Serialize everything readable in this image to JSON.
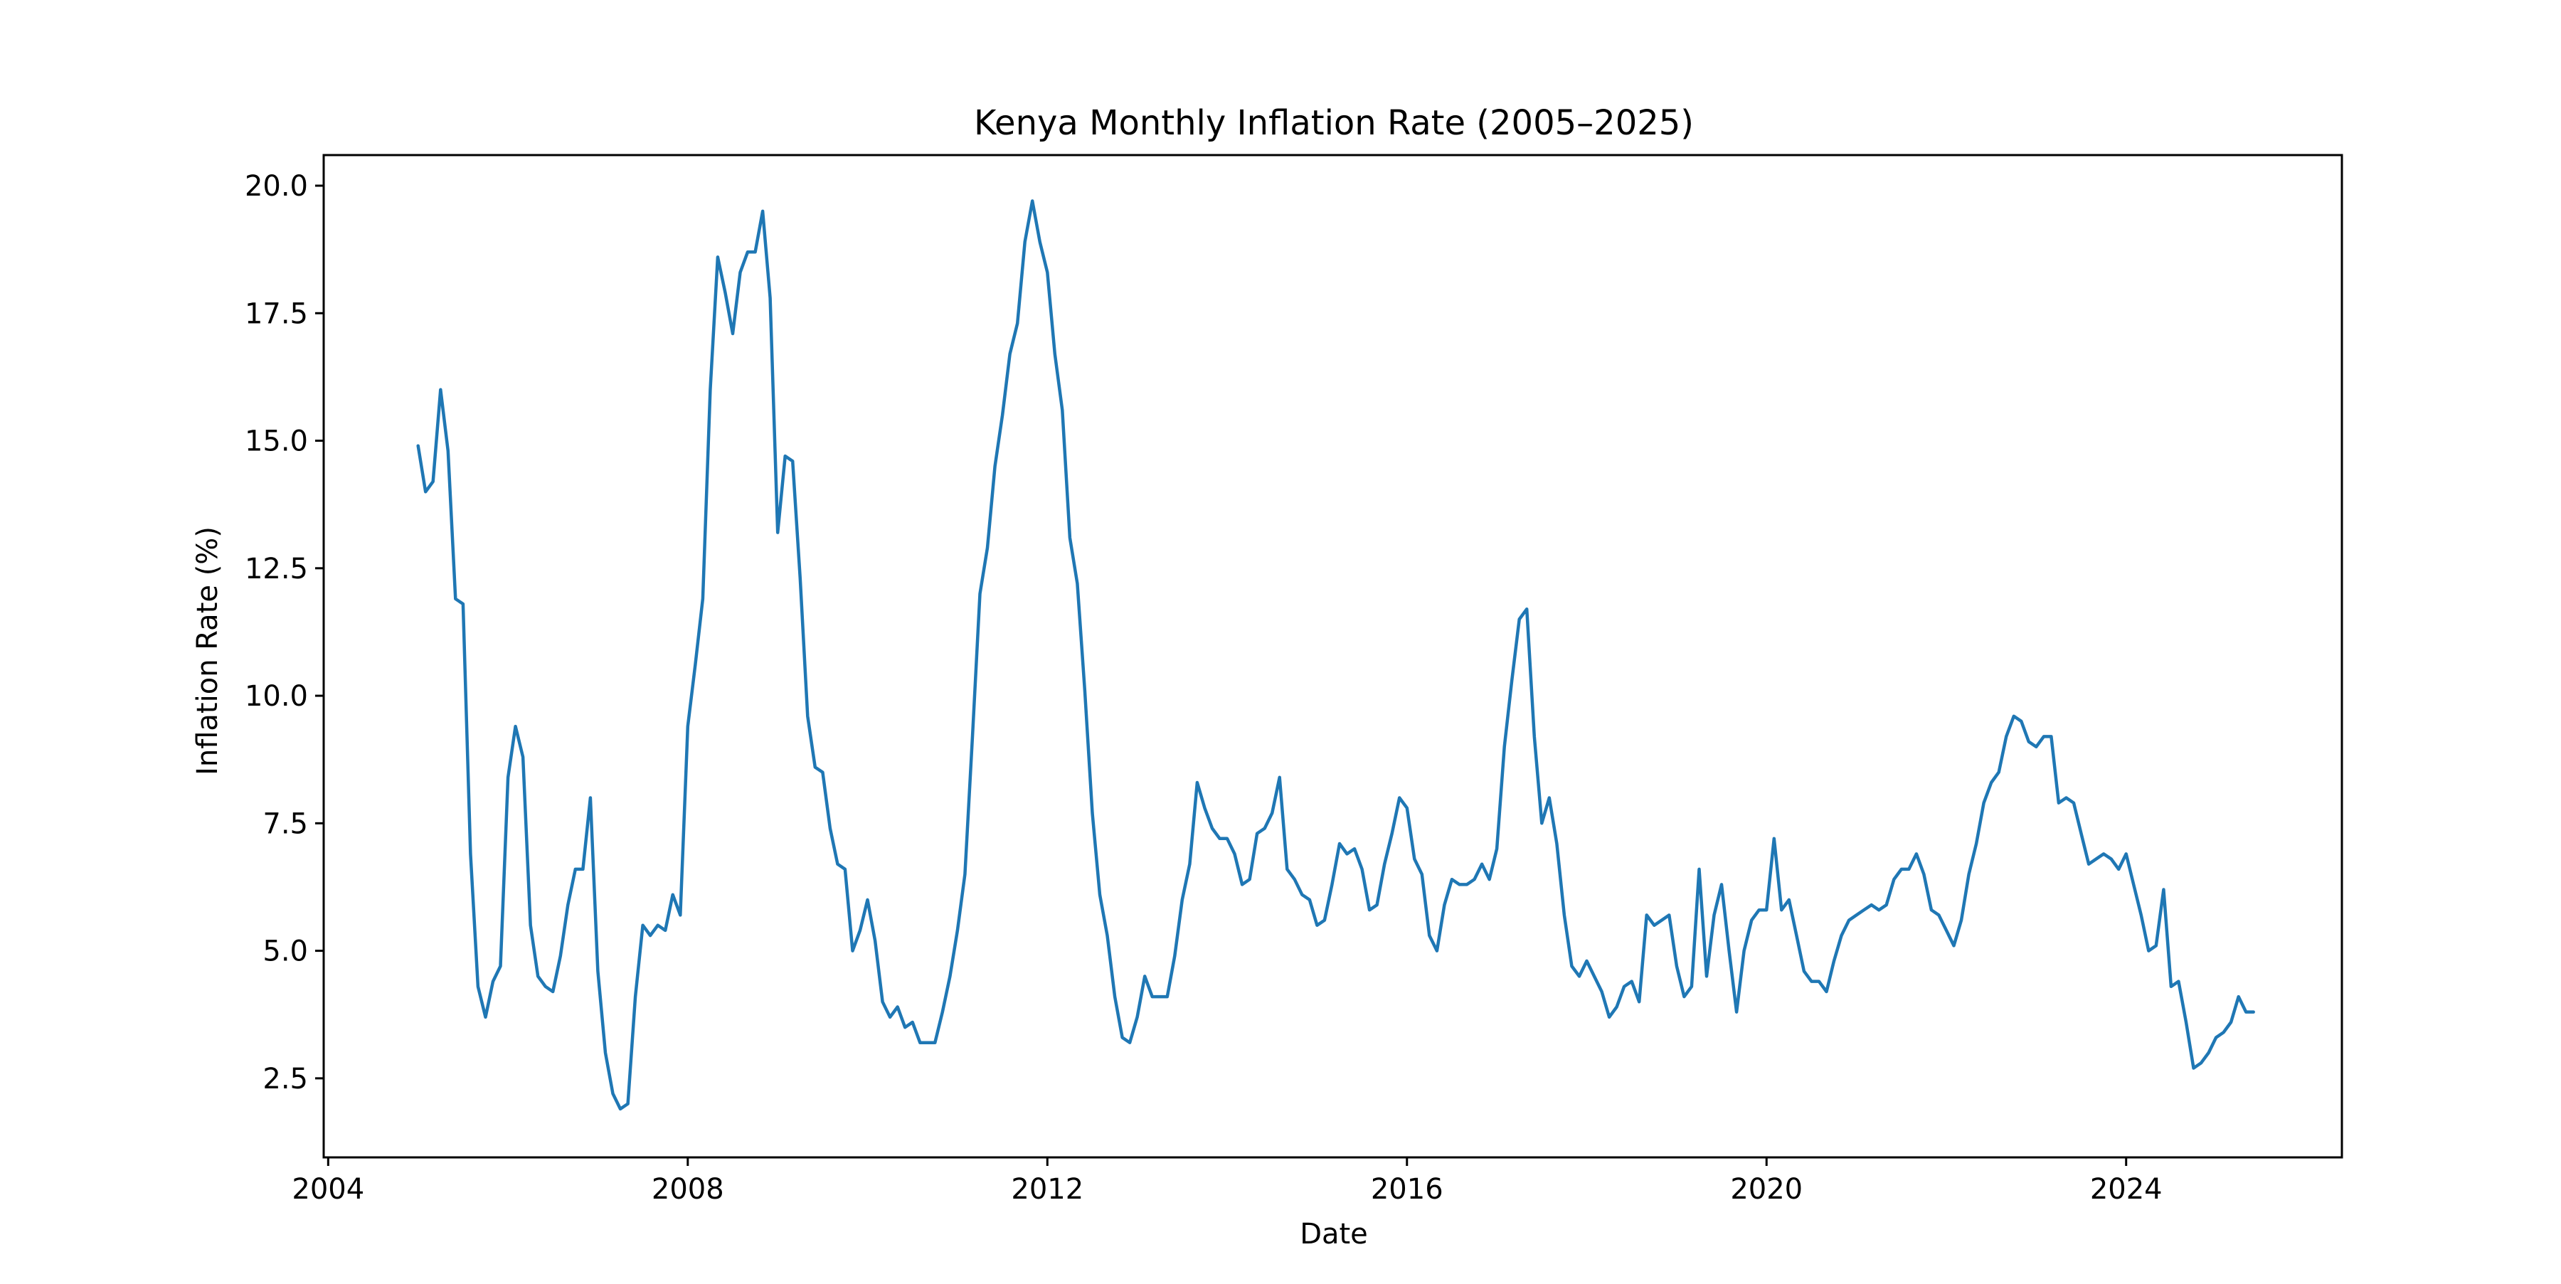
{
  "chart_data": {
    "type": "line",
    "title": "Kenya Monthly Inflation Rate (2005–2025)",
    "xlabel": "Date",
    "ylabel": "Inflation Rate (%)",
    "xlim": [
      2003.95,
      2026.4
    ],
    "ylim": [
      0.95,
      20.6
    ],
    "x_ticks": [
      2004,
      2008,
      2012,
      2016,
      2020,
      2024
    ],
    "x_tick_labels": [
      "2004",
      "2008",
      "2012",
      "2016",
      "2020",
      "2024"
    ],
    "y_ticks": [
      2.5,
      5.0,
      7.5,
      10.0,
      12.5,
      15.0,
      17.5,
      20.0
    ],
    "y_tick_labels": [
      "2.5",
      "5.0",
      "7.5",
      "10.0",
      "12.5",
      "15.0",
      "17.5",
      "20.0"
    ],
    "grid": false,
    "legend": "none",
    "line_color": "#1f77b4",
    "series": [
      {
        "x_start": "2005-01",
        "frequency": "monthly",
        "values": [
          14.9,
          14.0,
          14.2,
          16.0,
          14.8,
          11.9,
          11.8,
          6.9,
          4.3,
          3.7,
          4.4,
          4.7,
          8.4,
          9.4,
          8.8,
          5.5,
          4.5,
          4.3,
          4.2,
          4.9,
          5.9,
          6.6,
          6.6,
          8.0,
          4.6,
          3.0,
          2.2,
          1.9,
          2.0,
          4.1,
          5.5,
          5.3,
          5.5,
          5.4,
          6.1,
          5.7,
          9.4,
          10.6,
          11.9,
          16.0,
          18.6,
          17.9,
          17.1,
          18.3,
          18.7,
          18.7,
          19.5,
          17.8,
          13.2,
          14.7,
          14.6,
          12.3,
          9.6,
          8.6,
          8.5,
          7.4,
          6.7,
          6.6,
          5.0,
          5.4,
          6.0,
          5.2,
          4.0,
          3.7,
          3.9,
          3.5,
          3.6,
          3.2,
          3.2,
          3.2,
          3.8,
          4.5,
          5.4,
          6.5,
          9.2,
          12.0,
          12.9,
          14.5,
          15.5,
          16.7,
          17.3,
          18.9,
          19.7,
          18.9,
          18.3,
          16.7,
          15.6,
          13.1,
          12.2,
          10.1,
          7.7,
          6.1,
          5.3,
          4.1,
          3.3,
          3.2,
          3.7,
          4.5,
          4.1,
          4.1,
          4.1,
          4.9,
          6.0,
          6.7,
          8.3,
          7.8,
          7.4,
          7.2,
          7.2,
          6.9,
          6.3,
          6.4,
          7.3,
          7.4,
          7.7,
          8.4,
          6.6,
          6.4,
          6.1,
          6.0,
          5.5,
          5.6,
          6.3,
          7.1,
          6.9,
          7.0,
          6.6,
          5.8,
          5.9,
          6.7,
          7.3,
          8.0,
          7.8,
          6.8,
          6.5,
          5.3,
          5.0,
          5.9,
          6.4,
          6.3,
          6.3,
          6.4,
          6.7,
          6.4,
          7.0,
          9.0,
          10.3,
          11.5,
          11.7,
          9.2,
          7.5,
          8.0,
          7.1,
          5.7,
          4.7,
          4.5,
          4.8,
          4.5,
          4.2,
          3.7,
          3.9,
          4.3,
          4.4,
          4.0,
          5.7,
          5.5,
          5.6,
          5.7,
          4.7,
          4.1,
          4.3,
          6.6,
          4.5,
          5.7,
          6.3,
          5.0,
          3.8,
          5.0,
          5.6,
          5.8,
          5.8,
          7.2,
          5.8,
          6.0,
          5.3,
          4.6,
          4.4,
          4.4,
          4.2,
          4.8,
          5.3,
          5.6,
          5.7,
          5.8,
          5.9,
          5.8,
          5.9,
          6.4,
          6.6,
          6.6,
          6.9,
          6.5,
          5.8,
          5.7,
          5.4,
          5.1,
          5.6,
          6.5,
          7.1,
          7.9,
          8.3,
          8.5,
          9.2,
          9.6,
          9.5,
          9.1,
          9.0,
          9.2,
          9.2,
          7.9,
          8.0,
          7.9,
          7.3,
          6.7,
          6.8,
          6.9,
          6.8,
          6.6,
          6.9,
          6.3,
          5.7,
          5.0,
          5.1,
          6.2,
          4.3,
          4.4,
          3.6,
          2.7,
          2.8,
          3.0,
          3.3,
          3.4,
          3.6,
          4.1,
          3.8,
          3.8
        ]
      }
    ]
  }
}
